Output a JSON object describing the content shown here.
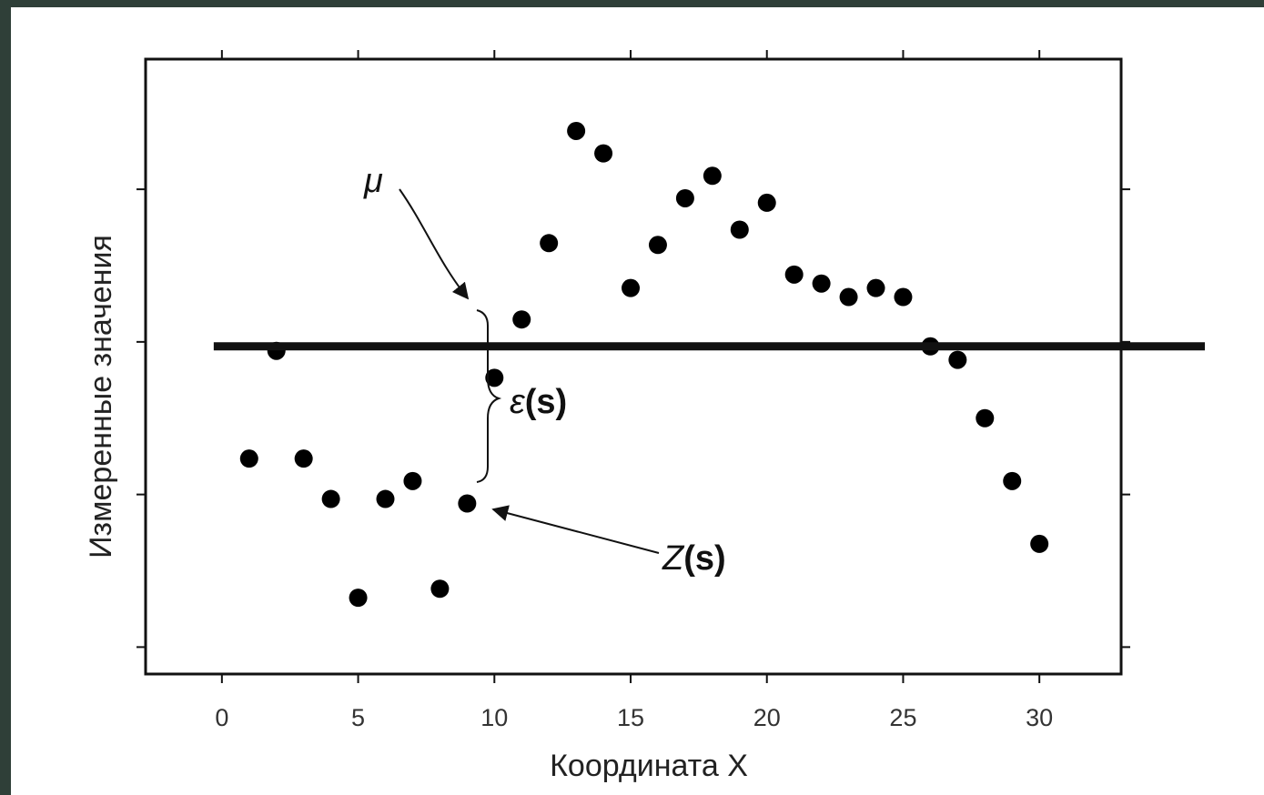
{
  "chart_data": {
    "type": "scatter",
    "title": "",
    "xlabel": "Координата X",
    "ylabel": "Измеренные значения",
    "xlim": [
      -2.8,
      33
    ],
    "ylim": [
      0,
      6.85
    ],
    "x_ticks": [
      0,
      5,
      10,
      15,
      20,
      25,
      30
    ],
    "x_tick_labels": [
      "0",
      "5",
      "10",
      "15",
      "20",
      "25",
      "30"
    ],
    "y_ticks_unlabeled": [
      0.3,
      2.0,
      3.7,
      5.4
    ],
    "grid": false,
    "legend": "none",
    "mean_line": {
      "label": "μ",
      "y": 3.65
    },
    "annotations": {
      "error": {
        "symbol": "ε",
        "label": "(s)"
      },
      "observation": {
        "symbol": "Z",
        "label": "(s)"
      }
    },
    "points": [
      {
        "x": 1,
        "y": 2.4
      },
      {
        "x": 2,
        "y": 3.6
      },
      {
        "x": 3,
        "y": 2.4
      },
      {
        "x": 4,
        "y": 1.95
      },
      {
        "x": 5,
        "y": 0.85
      },
      {
        "x": 6,
        "y": 1.95
      },
      {
        "x": 7,
        "y": 2.15
      },
      {
        "x": 8,
        "y": 0.95
      },
      {
        "x": 9,
        "y": 1.9
      },
      {
        "x": 10,
        "y": 3.3
      },
      {
        "x": 11,
        "y": 3.95
      },
      {
        "x": 12,
        "y": 4.8
      },
      {
        "x": 13,
        "y": 6.05
      },
      {
        "x": 14,
        "y": 5.8
      },
      {
        "x": 15,
        "y": 4.3
      },
      {
        "x": 16,
        "y": 4.78
      },
      {
        "x": 17,
        "y": 5.3
      },
      {
        "x": 18,
        "y": 5.55
      },
      {
        "x": 19,
        "y": 4.95
      },
      {
        "x": 20,
        "y": 5.25
      },
      {
        "x": 21,
        "y": 4.45
      },
      {
        "x": 22,
        "y": 4.35
      },
      {
        "x": 23,
        "y": 4.2
      },
      {
        "x": 24,
        "y": 4.3
      },
      {
        "x": 25,
        "y": 4.2
      },
      {
        "x": 26,
        "y": 3.65
      },
      {
        "x": 27,
        "y": 3.5
      },
      {
        "x": 28,
        "y": 2.85
      },
      {
        "x": 29,
        "y": 2.15
      },
      {
        "x": 30,
        "y": 1.45
      }
    ]
  }
}
